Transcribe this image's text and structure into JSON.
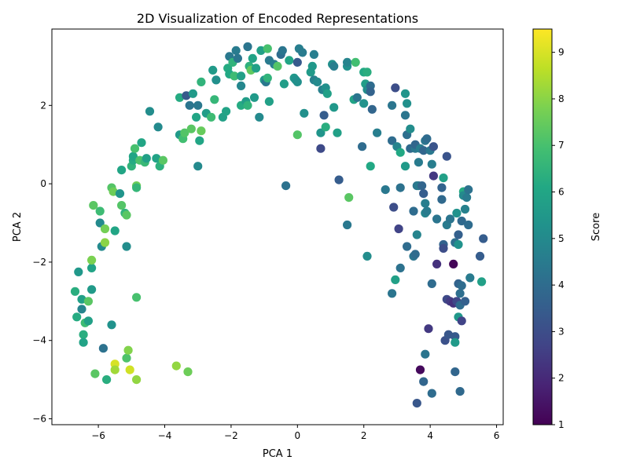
{
  "chart_data": {
    "type": "scatter",
    "title": "2D Visualization of Encoded Representations",
    "xlabel": "PCA 1",
    "ylabel": "PCA 2",
    "xlim": [
      -7.4,
      6.2
    ],
    "ylim": [
      -6.15,
      3.95
    ],
    "xticks": [
      -6,
      -4,
      -2,
      0,
      2,
      4,
      6
    ],
    "yticks": [
      -6,
      -4,
      -2,
      0,
      2
    ],
    "grid": false,
    "colorbar": {
      "label": "Score",
      "colormap": "viridis",
      "range": [
        1,
        9.5
      ],
      "ticks": [
        1,
        2,
        3,
        4,
        5,
        6,
        7,
        8,
        9
      ]
    },
    "points": [
      {
        "x": -6.7,
        "y": -2.75,
        "score": 6.3
      },
      {
        "x": -6.6,
        "y": -2.25,
        "score": 5.5
      },
      {
        "x": -6.65,
        "y": -3.4,
        "score": 6.2
      },
      {
        "x": -6.5,
        "y": -2.95,
        "score": 5.8
      },
      {
        "x": -6.5,
        "y": -3.2,
        "score": 4.8
      },
      {
        "x": -6.45,
        "y": -3.85,
        "score": 6.3
      },
      {
        "x": -6.45,
        "y": -4.05,
        "score": 5.9
      },
      {
        "x": -6.4,
        "y": -3.55,
        "score": 6.8
      },
      {
        "x": -6.3,
        "y": -3.5,
        "score": 5.8
      },
      {
        "x": -6.3,
        "y": -3.0,
        "score": 7.3
      },
      {
        "x": -6.2,
        "y": -2.7,
        "score": 5.6
      },
      {
        "x": -6.2,
        "y": -2.15,
        "score": 5.9
      },
      {
        "x": -6.2,
        "y": -1.95,
        "score": 7.8
      },
      {
        "x": -6.15,
        "y": -0.55,
        "score": 7.3
      },
      {
        "x": -6.1,
        "y": -4.85,
        "score": 7.3
      },
      {
        "x": -5.95,
        "y": -0.7,
        "score": 6.8
      },
      {
        "x": -5.95,
        "y": -1.0,
        "score": 5.0
      },
      {
        "x": -5.9,
        "y": -1.6,
        "score": 5.0
      },
      {
        "x": -5.85,
        "y": -4.2,
        "score": 4.2
      },
      {
        "x": -5.8,
        "y": -1.5,
        "score": 8.0
      },
      {
        "x": -5.8,
        "y": -1.15,
        "score": 7.7
      },
      {
        "x": -5.75,
        "y": -5.0,
        "score": 6.3
      },
      {
        "x": -5.6,
        "y": -3.6,
        "score": 5.3
      },
      {
        "x": -5.6,
        "y": -0.1,
        "score": 7.2
      },
      {
        "x": -5.55,
        "y": -0.2,
        "score": 7.6
      },
      {
        "x": -5.5,
        "y": -1.2,
        "score": 6.0
      },
      {
        "x": -5.5,
        "y": -4.6,
        "score": 9.0
      },
      {
        "x": -5.5,
        "y": -4.75,
        "score": 8.3
      },
      {
        "x": -5.35,
        "y": -0.25,
        "score": 5.4
      },
      {
        "x": -5.3,
        "y": -0.55,
        "score": 7.2
      },
      {
        "x": -5.3,
        "y": 0.35,
        "score": 6.0
      },
      {
        "x": -5.2,
        "y": -0.75,
        "score": 6.5
      },
      {
        "x": -5.15,
        "y": -0.8,
        "score": 7.3
      },
      {
        "x": -5.15,
        "y": -1.6,
        "score": 5.1
      },
      {
        "x": -5.15,
        "y": -4.45,
        "score": 7.1
      },
      {
        "x": -5.1,
        "y": -4.25,
        "score": 7.9
      },
      {
        "x": -5.05,
        "y": -4.75,
        "score": 8.9
      },
      {
        "x": -5.0,
        "y": 0.45,
        "score": 6.5
      },
      {
        "x": -4.95,
        "y": 0.6,
        "score": 6.2
      },
      {
        "x": -4.95,
        "y": 0.7,
        "score": 6.0
      },
      {
        "x": -4.9,
        "y": 0.9,
        "score": 7.0
      },
      {
        "x": -4.85,
        "y": -0.05,
        "score": 7.6
      },
      {
        "x": -4.85,
        "y": -0.1,
        "score": 6.6
      },
      {
        "x": -4.85,
        "y": -5.0,
        "score": 8.1
      },
      {
        "x": -4.85,
        "y": -2.9,
        "score": 7.0
      },
      {
        "x": -4.75,
        "y": 0.6,
        "score": 7.1
      },
      {
        "x": -4.7,
        "y": 1.05,
        "score": 6.0
      },
      {
        "x": -4.6,
        "y": 0.55,
        "score": 6.7
      },
      {
        "x": -4.55,
        "y": 0.65,
        "score": 5.8
      },
      {
        "x": -4.45,
        "y": 1.85,
        "score": 5.1
      },
      {
        "x": -4.25,
        "y": 0.65,
        "score": 5.9
      },
      {
        "x": -4.2,
        "y": 1.45,
        "score": 5.0
      },
      {
        "x": -4.15,
        "y": 0.45,
        "score": 6.4
      },
      {
        "x": -4.05,
        "y": 0.6,
        "score": 7.3
      },
      {
        "x": -3.65,
        "y": -4.65,
        "score": 8.1
      },
      {
        "x": -3.55,
        "y": 2.2,
        "score": 6.2
      },
      {
        "x": -3.55,
        "y": 1.25,
        "score": 5.6
      },
      {
        "x": -3.45,
        "y": 1.15,
        "score": 6.9
      },
      {
        "x": -3.4,
        "y": 1.3,
        "score": 7.2
      },
      {
        "x": -3.35,
        "y": 2.25,
        "score": 3.4
      },
      {
        "x": -3.3,
        "y": -4.8,
        "score": 7.6
      },
      {
        "x": -3.25,
        "y": 2.0,
        "score": 4.3
      },
      {
        "x": -3.2,
        "y": 1.4,
        "score": 7.3
      },
      {
        "x": -3.15,
        "y": 2.3,
        "score": 5.6
      },
      {
        "x": -3.05,
        "y": 1.7,
        "score": 6.0
      },
      {
        "x": -3.0,
        "y": 2.0,
        "score": 4.4
      },
      {
        "x": -3.0,
        "y": 0.45,
        "score": 5.0
      },
      {
        "x": -2.95,
        "y": 1.1,
        "score": 6.0
      },
      {
        "x": -2.9,
        "y": 2.6,
        "score": 6.5
      },
      {
        "x": -2.9,
        "y": 1.35,
        "score": 7.5
      },
      {
        "x": -2.75,
        "y": 1.8,
        "score": 5.7
      },
      {
        "x": -2.6,
        "y": 1.7,
        "score": 6.8
      },
      {
        "x": -2.55,
        "y": 2.9,
        "score": 5.6
      },
      {
        "x": -2.5,
        "y": 2.15,
        "score": 6.6
      },
      {
        "x": -2.45,
        "y": 2.65,
        "score": 5.2
      },
      {
        "x": -2.25,
        "y": 1.7,
        "score": 5.8
      },
      {
        "x": -2.15,
        "y": 1.85,
        "score": 5.9
      },
      {
        "x": -2.1,
        "y": 2.95,
        "score": 6.2
      },
      {
        "x": -2.05,
        "y": 2.8,
        "score": 6.1
      },
      {
        "x": -2.05,
        "y": 3.25,
        "score": 4.4
      },
      {
        "x": -1.95,
        "y": 3.1,
        "score": 6.5
      },
      {
        "x": -1.9,
        "y": 2.75,
        "score": 6.8
      },
      {
        "x": -1.85,
        "y": 3.4,
        "score": 4.5
      },
      {
        "x": -1.8,
        "y": 3.2,
        "score": 4.3
      },
      {
        "x": -1.7,
        "y": 2.75,
        "score": 5.8
      },
      {
        "x": -1.7,
        "y": 2.5,
        "score": 4.9
      },
      {
        "x": -1.7,
        "y": 2.0,
        "score": 6.2
      },
      {
        "x": -1.55,
        "y": 2.1,
        "score": 5.7
      },
      {
        "x": -1.5,
        "y": 3.5,
        "score": 4.3
      },
      {
        "x": -1.5,
        "y": 2.0,
        "score": 6.5
      },
      {
        "x": -1.45,
        "y": 3.0,
        "score": 6.4
      },
      {
        "x": -1.4,
        "y": 2.9,
        "score": 7.4
      },
      {
        "x": -1.35,
        "y": 3.2,
        "score": 5.9
      },
      {
        "x": -1.3,
        "y": 2.2,
        "score": 5.6
      },
      {
        "x": -1.25,
        "y": 2.95,
        "score": 5.8
      },
      {
        "x": -1.15,
        "y": 1.7,
        "score": 5.0
      },
      {
        "x": -1.1,
        "y": 3.4,
        "score": 5.8
      },
      {
        "x": -1.0,
        "y": 2.65,
        "score": 5.5
      },
      {
        "x": -0.95,
        "y": 2.6,
        "score": 4.4
      },
      {
        "x": -0.9,
        "y": 3.45,
        "score": 7.0
      },
      {
        "x": -0.9,
        "y": 2.7,
        "score": 6.5
      },
      {
        "x": -0.85,
        "y": 3.15,
        "score": 4.5
      },
      {
        "x": -0.85,
        "y": 2.1,
        "score": 5.8
      },
      {
        "x": -0.7,
        "y": 3.05,
        "score": 4.6
      },
      {
        "x": -0.6,
        "y": 3.0,
        "score": 7.2
      },
      {
        "x": -0.5,
        "y": 3.3,
        "score": 4.0
      },
      {
        "x": -0.45,
        "y": 3.4,
        "score": 4.3
      },
      {
        "x": -0.4,
        "y": 2.55,
        "score": 5.7
      },
      {
        "x": -0.35,
        "y": -0.05,
        "score": 4.2
      },
      {
        "x": -0.25,
        "y": 3.15,
        "score": 6.0
      },
      {
        "x": -0.1,
        "y": 2.7,
        "score": 5.5
      },
      {
        "x": -0.05,
        "y": 2.65,
        "score": 5.3
      },
      {
        "x": 0.0,
        "y": 2.6,
        "score": 5.2
      },
      {
        "x": 0.0,
        "y": 1.25,
        "score": 7.2
      },
      {
        "x": 0.0,
        "y": 3.1,
        "score": 3.4
      },
      {
        "x": 0.05,
        "y": 3.45,
        "score": 4.6
      },
      {
        "x": 0.15,
        "y": 3.35,
        "score": 4.5
      },
      {
        "x": 0.2,
        "y": 1.8,
        "score": 5.2
      },
      {
        "x": 0.4,
        "y": 2.85,
        "score": 5.6
      },
      {
        "x": 0.45,
        "y": 3.0,
        "score": 5.5
      },
      {
        "x": 0.5,
        "y": 2.65,
        "score": 4.7
      },
      {
        "x": 0.5,
        "y": 3.3,
        "score": 4.6
      },
      {
        "x": 0.6,
        "y": 2.6,
        "score": 5.0
      },
      {
        "x": 0.7,
        "y": 1.3,
        "score": 5.4
      },
      {
        "x": 0.7,
        "y": 0.9,
        "score": 2.9
      },
      {
        "x": 0.75,
        "y": 2.4,
        "score": 4.7
      },
      {
        "x": 0.8,
        "y": 1.75,
        "score": 3.5
      },
      {
        "x": 0.85,
        "y": 1.45,
        "score": 6.3
      },
      {
        "x": 0.85,
        "y": 2.45,
        "score": 5.2
      },
      {
        "x": 0.9,
        "y": 2.3,
        "score": 5.8
      },
      {
        "x": 1.05,
        "y": 3.05,
        "score": 5.2
      },
      {
        "x": 1.1,
        "y": 1.95,
        "score": 5.5
      },
      {
        "x": 1.1,
        "y": 3.0,
        "score": 4.6
      },
      {
        "x": 1.2,
        "y": 1.3,
        "score": 5.8
      },
      {
        "x": 1.25,
        "y": 0.1,
        "score": 3.5
      },
      {
        "x": 1.5,
        "y": 3.0,
        "score": 5.3
      },
      {
        "x": 1.5,
        "y": 3.1,
        "score": 4.8
      },
      {
        "x": 1.5,
        "y": -1.05,
        "score": 4.4
      },
      {
        "x": 1.55,
        "y": -0.35,
        "score": 7.3
      },
      {
        "x": 1.7,
        "y": 2.15,
        "score": 5.9
      },
      {
        "x": 1.75,
        "y": 3.1,
        "score": 6.9
      },
      {
        "x": 1.8,
        "y": 2.2,
        "score": 4.3
      },
      {
        "x": 1.95,
        "y": 0.95,
        "score": 4.0
      },
      {
        "x": 2.0,
        "y": 2.05,
        "score": 5.3
      },
      {
        "x": 2.0,
        "y": 2.85,
        "score": 6.1
      },
      {
        "x": 2.05,
        "y": 2.55,
        "score": 5.7
      },
      {
        "x": 2.1,
        "y": 2.4,
        "score": 5.1
      },
      {
        "x": 2.1,
        "y": 2.85,
        "score": 6.3
      },
      {
        "x": 2.1,
        "y": -1.85,
        "score": 5.1
      },
      {
        "x": 2.2,
        "y": 2.5,
        "score": 4.0
      },
      {
        "x": 2.2,
        "y": 2.35,
        "score": 3.7
      },
      {
        "x": 2.2,
        "y": 0.45,
        "score": 6.1
      },
      {
        "x": 2.25,
        "y": 1.9,
        "score": 3.8
      },
      {
        "x": 2.4,
        "y": 1.3,
        "score": 4.6
      },
      {
        "x": 2.65,
        "y": -0.15,
        "score": 4.4
      },
      {
        "x": 2.85,
        "y": 2.0,
        "score": 4.3
      },
      {
        "x": 2.85,
        "y": 1.1,
        "score": 4.0
      },
      {
        "x": 2.85,
        "y": -2.8,
        "score": 4.3
      },
      {
        "x": 2.9,
        "y": -0.6,
        "score": 3.0
      },
      {
        "x": 2.95,
        "y": 2.45,
        "score": 3.0
      },
      {
        "x": 2.95,
        "y": -2.45,
        "score": 5.8
      },
      {
        "x": 3.0,
        "y": 0.95,
        "score": 4.8
      },
      {
        "x": 3.05,
        "y": -1.15,
        "score": 2.7
      },
      {
        "x": 3.1,
        "y": -0.1,
        "score": 4.2
      },
      {
        "x": 3.1,
        "y": -2.15,
        "score": 4.2
      },
      {
        "x": 3.1,
        "y": 0.8,
        "score": 6.1
      },
      {
        "x": 3.25,
        "y": 1.75,
        "score": 4.3
      },
      {
        "x": 3.25,
        "y": 0.45,
        "score": 5.6
      },
      {
        "x": 3.25,
        "y": 2.3,
        "score": 5.4
      },
      {
        "x": 3.3,
        "y": 2.05,
        "score": 5.2
      },
      {
        "x": 3.3,
        "y": 1.25,
        "score": 4.1
      },
      {
        "x": 3.3,
        "y": -1.6,
        "score": 4.0
      },
      {
        "x": 3.4,
        "y": 0.9,
        "score": 3.9
      },
      {
        "x": 3.4,
        "y": 1.4,
        "score": 5.1
      },
      {
        "x": 3.5,
        "y": -0.7,
        "score": 4.0
      },
      {
        "x": 3.5,
        "y": -1.85,
        "score": 4.3
      },
      {
        "x": 3.55,
        "y": 0.9,
        "score": 4.4
      },
      {
        "x": 3.55,
        "y": 1.0,
        "score": 3.8
      },
      {
        "x": 3.55,
        "y": -1.8,
        "score": 4.0
      },
      {
        "x": 3.6,
        "y": -0.05,
        "score": 4.3
      },
      {
        "x": 3.6,
        "y": -1.3,
        "score": 4.8
      },
      {
        "x": 3.6,
        "y": -5.6,
        "score": 3.3
      },
      {
        "x": 3.65,
        "y": -0.05,
        "score": 4.5
      },
      {
        "x": 3.65,
        "y": 0.55,
        "score": 4.5
      },
      {
        "x": 3.7,
        "y": 0.9,
        "score": 4.6
      },
      {
        "x": 3.7,
        "y": -4.75,
        "score": 1.2
      },
      {
        "x": 3.75,
        "y": -0.05,
        "score": 3.8
      },
      {
        "x": 3.8,
        "y": 0.85,
        "score": 3.8
      },
      {
        "x": 3.8,
        "y": -0.25,
        "score": 3.5
      },
      {
        "x": 3.85,
        "y": -0.5,
        "score": 4.6
      },
      {
        "x": 3.85,
        "y": -0.75,
        "score": 4.8
      },
      {
        "x": 3.8,
        "y": -5.05,
        "score": 3.8
      },
      {
        "x": 3.85,
        "y": -4.35,
        "score": 4.3
      },
      {
        "x": 3.85,
        "y": 1.1,
        "score": 4.3
      },
      {
        "x": 3.9,
        "y": 1.15,
        "score": 4.0
      },
      {
        "x": 3.9,
        "y": -0.7,
        "score": 4.5
      },
      {
        "x": 3.95,
        "y": -3.7,
        "score": 2.4
      },
      {
        "x": 4.0,
        "y": 0.85,
        "score": 4.4
      },
      {
        "x": 4.05,
        "y": 0.5,
        "score": 4.6
      },
      {
        "x": 4.05,
        "y": -2.55,
        "score": 4.0
      },
      {
        "x": 4.05,
        "y": -5.35,
        "score": 4.0
      },
      {
        "x": 4.1,
        "y": 0.95,
        "score": 3.2
      },
      {
        "x": 4.1,
        "y": 0.2,
        "score": 2.4
      },
      {
        "x": 4.2,
        "y": -0.9,
        "score": 4.3
      },
      {
        "x": 4.2,
        "y": -2.05,
        "score": 2.2
      },
      {
        "x": 4.35,
        "y": -0.1,
        "score": 3.7
      },
      {
        "x": 4.35,
        "y": -0.4,
        "score": 3.9
      },
      {
        "x": 4.4,
        "y": 0.15,
        "score": 5.8
      },
      {
        "x": 4.4,
        "y": -1.55,
        "score": 3.7
      },
      {
        "x": 4.4,
        "y": -1.65,
        "score": 3.0
      },
      {
        "x": 4.45,
        "y": -4.0,
        "score": 3.1
      },
      {
        "x": 4.5,
        "y": 0.7,
        "score": 3.2
      },
      {
        "x": 4.5,
        "y": -1.05,
        "score": 4.5
      },
      {
        "x": 4.5,
        "y": -2.95,
        "score": 2.9
      },
      {
        "x": 4.55,
        "y": -3.85,
        "score": 3.3
      },
      {
        "x": 4.6,
        "y": -0.9,
        "score": 4.3
      },
      {
        "x": 4.6,
        "y": -3.0,
        "score": 2.5
      },
      {
        "x": 4.7,
        "y": -2.05,
        "score": 1.1
      },
      {
        "x": 4.7,
        "y": -3.05,
        "score": 2.2
      },
      {
        "x": 4.75,
        "y": -3.9,
        "score": 3.4
      },
      {
        "x": 4.75,
        "y": -4.05,
        "score": 5.6
      },
      {
        "x": 4.75,
        "y": -4.8,
        "score": 3.8
      },
      {
        "x": 4.75,
        "y": -1.5,
        "score": 4.1
      },
      {
        "x": 4.8,
        "y": -0.75,
        "score": 5.3
      },
      {
        "x": 4.8,
        "y": -3.0,
        "score": 2.8
      },
      {
        "x": 4.85,
        "y": -1.55,
        "score": 5.3
      },
      {
        "x": 4.85,
        "y": -1.3,
        "score": 3.6
      },
      {
        "x": 4.85,
        "y": -2.55,
        "score": 3.7
      },
      {
        "x": 4.85,
        "y": -3.4,
        "score": 5.5
      },
      {
        "x": 4.9,
        "y": -2.8,
        "score": 4.1
      },
      {
        "x": 4.9,
        "y": -3.1,
        "score": 4.0
      },
      {
        "x": 4.9,
        "y": -5.3,
        "score": 3.9
      },
      {
        "x": 4.95,
        "y": -2.6,
        "score": 4.0
      },
      {
        "x": 4.95,
        "y": -3.5,
        "score": 2.7
      },
      {
        "x": 4.95,
        "y": -0.95,
        "score": 3.9
      },
      {
        "x": 5.0,
        "y": -0.2,
        "score": 6.2
      },
      {
        "x": 5.0,
        "y": -0.3,
        "score": 5.0
      },
      {
        "x": 5.05,
        "y": -0.65,
        "score": 4.7
      },
      {
        "x": 5.05,
        "y": -3.0,
        "score": 3.6
      },
      {
        "x": 5.1,
        "y": -0.35,
        "score": 4.5
      },
      {
        "x": 5.15,
        "y": -0.15,
        "score": 4.2
      },
      {
        "x": 5.15,
        "y": -1.05,
        "score": 4.0
      },
      {
        "x": 5.2,
        "y": -2.4,
        "score": 4.5
      },
      {
        "x": 5.5,
        "y": -1.85,
        "score": 3.5
      },
      {
        "x": 5.55,
        "y": -2.5,
        "score": 5.8
      },
      {
        "x": 5.6,
        "y": -1.4,
        "score": 3.5
      }
    ]
  }
}
